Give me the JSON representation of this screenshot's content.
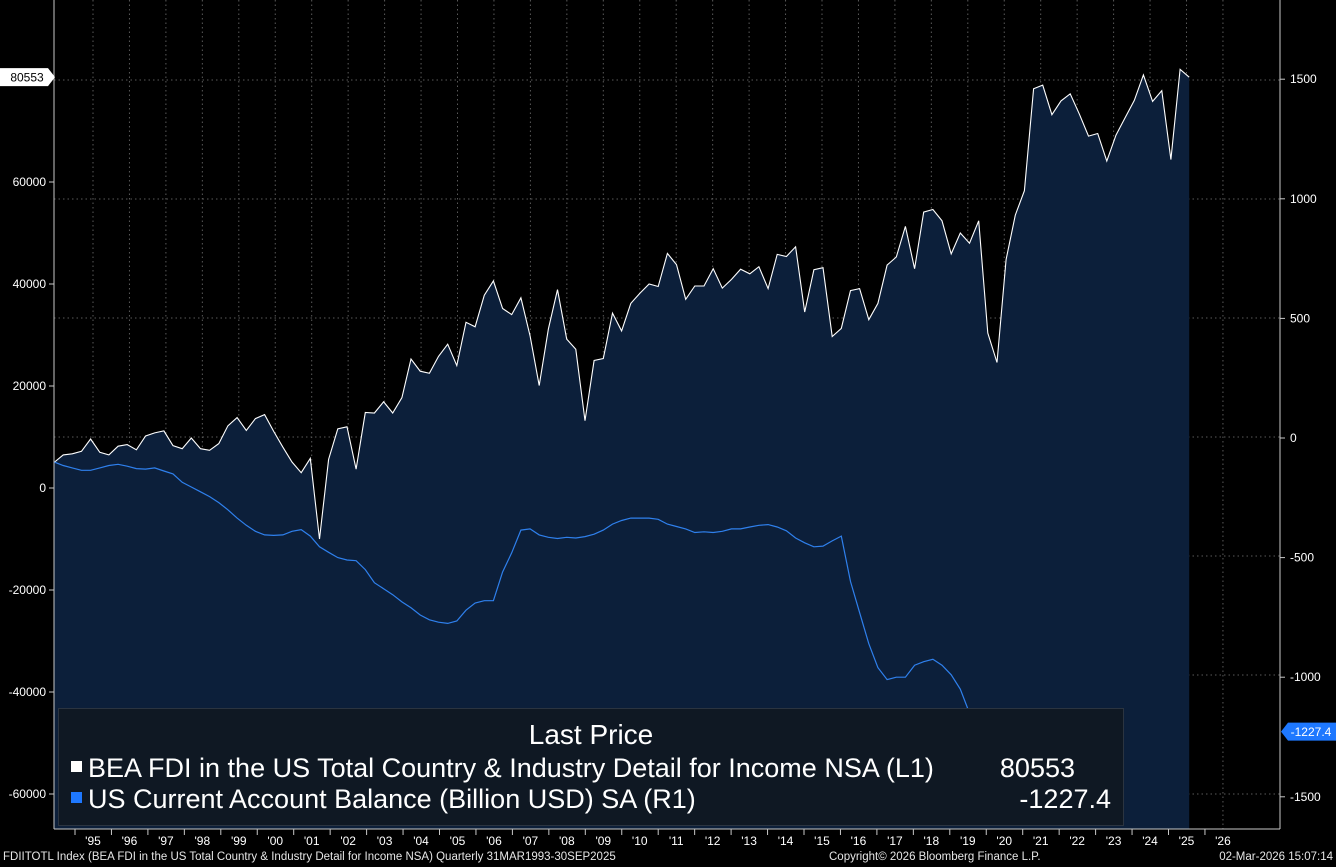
{
  "chart_data": {
    "type": "line",
    "x_tick_labels": [
      "'95",
      "'96",
      "'97",
      "'98",
      "'99",
      "'00",
      "'01",
      "'02",
      "'03",
      "'04",
      "'05",
      "'06",
      "'07",
      "'08",
      "'09",
      "'10",
      "'11",
      "'12",
      "'13",
      "'14",
      "'15",
      "'16",
      "'17",
      "'18",
      "'19",
      "'20",
      "'21",
      "'22",
      "'23",
      "'24",
      "'25",
      "'26"
    ],
    "left_axis": {
      "ticks": [
        60000,
        40000,
        20000,
        0,
        -20000,
        -40000,
        -60000
      ],
      "ylim": [
        -67000,
        95000
      ]
    },
    "right_axis": {
      "ticks": [
        1500,
        1000,
        500,
        0,
        -500,
        -1000,
        -1500
      ],
      "ylim": [
        -1650,
        1830
      ]
    },
    "grid": true,
    "series": [
      {
        "name": "BEA FDI in the US Total Country & Industry Detail for Income NSA",
        "axis": "L1",
        "color": "#ffffff",
        "fill": "#0c1f3a",
        "last_value": "80553",
        "values": [
          5000,
          6500,
          6700,
          7200,
          9600,
          7000,
          6500,
          8200,
          8500,
          7500,
          10200,
          10800,
          11200,
          8300,
          7700,
          9800,
          7700,
          7400,
          8700,
          12200,
          13800,
          11300,
          13600,
          14400,
          11100,
          8000,
          5100,
          3000,
          5800,
          -10000,
          5600,
          11600,
          12000,
          3700,
          14800,
          14700,
          16900,
          14700,
          17700,
          25300,
          22900,
          22500,
          25800,
          28200,
          24000,
          32500,
          31600,
          37800,
          40600,
          35200,
          34000,
          37300,
          29800,
          20100,
          31200,
          38900,
          29200,
          27200,
          13200,
          25000,
          25400,
          34300,
          30800,
          36200,
          38200,
          40000,
          39500,
          46000,
          43800,
          37000,
          39600,
          39600,
          43000,
          39200,
          40900,
          42900,
          42000,
          43400,
          39100,
          45800,
          45400,
          47300,
          34500,
          42800,
          43200,
          29700,
          31300,
          38700,
          39100,
          33000,
          36200,
          43700,
          45300,
          51300,
          43000,
          54100,
          54600,
          52400,
          45900,
          50000,
          48000,
          52400,
          30400,
          24600,
          44800,
          53500,
          58300,
          78300,
          79000,
          73200,
          75900,
          77300,
          73300,
          69000,
          69500,
          64100,
          69200,
          72600,
          76000,
          81000,
          75800,
          77900,
          64400,
          82100,
          80553
        ]
      },
      {
        "name": "US Current Account Balance (Billion USD) SA",
        "axis": "R1",
        "color": "#2f80ed",
        "last_value": "-1227.4",
        "values": [
          -100,
          -115,
          -125,
          -135,
          -135,
          -125,
          -115,
          -110,
          -118,
          -128,
          -130,
          -125,
          -138,
          -150,
          -185,
          -205,
          -225,
          -245,
          -270,
          -300,
          -335,
          -365,
          -390,
          -405,
          -407,
          -405,
          -390,
          -383,
          -410,
          -455,
          -478,
          -500,
          -510,
          -513,
          -550,
          -605,
          -630,
          -655,
          -685,
          -710,
          -740,
          -760,
          -770,
          -775,
          -765,
          -720,
          -690,
          -680,
          -680,
          -560,
          -480,
          -385,
          -380,
          -405,
          -415,
          -420,
          -415,
          -418,
          -412,
          -402,
          -385,
          -360,
          -345,
          -335,
          -335,
          -335,
          -340,
          -360,
          -370,
          -380,
          -395,
          -392,
          -395,
          -390,
          -380,
          -380,
          -372,
          -365,
          -362,
          -372,
          -388,
          -418,
          -438,
          -455,
          -452,
          -430,
          -410,
          -600,
          -730,
          -860,
          -960,
          -1010,
          -1000,
          -1000,
          -950,
          -935,
          -925,
          -950,
          -990,
          -1050,
          -1150,
          -1280,
          -1350,
          -1300,
          -1227.4
        ]
      }
    ],
    "legend": {
      "title": "Last Price",
      "entries": [
        {
          "label": "BEA FDI in the US Total Country & Industry Detail for Income NSA  (L1)",
          "value": "80553",
          "color": "#ffffff"
        },
        {
          "label": "US Current Account Balance (Billion USD) SA  (R1)",
          "value": "-1227.4",
          "color": "#1e78ff"
        }
      ],
      "position": "bottom-left"
    },
    "last_value_tags": {
      "left": "80553",
      "right": "-1227.4"
    }
  },
  "footer": {
    "left": "FDIITOTL Index (BEA FDI in the US Total Country & Industry Detail for Income NSA) Quarterly 31MAR1993-30SEP2025",
    "center": "Copyright© 2026 Bloomberg Finance L.P.",
    "right": "02-Mar-2026 15:07:14"
  }
}
